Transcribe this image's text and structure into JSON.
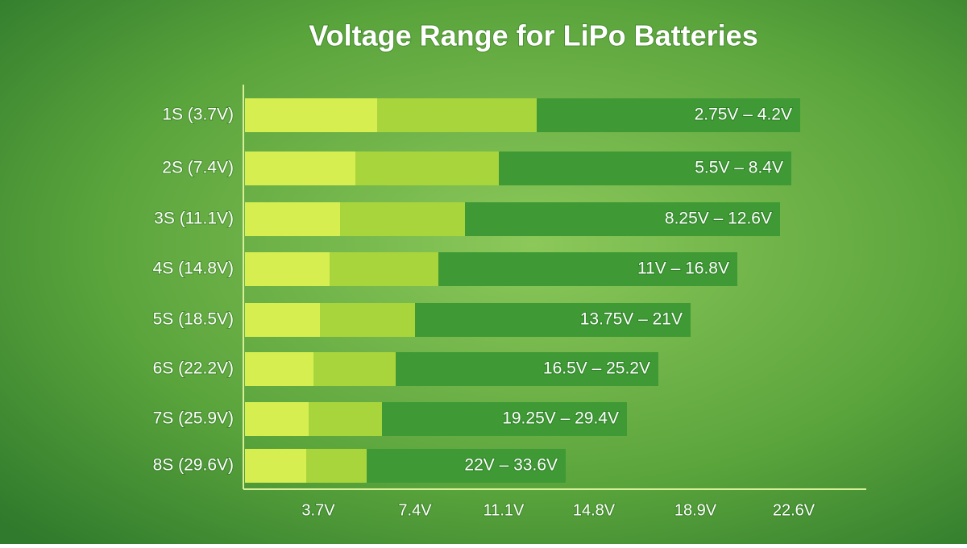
{
  "chart_data": {
    "type": "range-bar",
    "title": "Voltage Range for LiPo Batteries",
    "categories": [
      "1S (3.7V)",
      "2S (7.4V)",
      "3S (11.1V)",
      "4S (14.8V)",
      "5S (18.5V)",
      "6S (22.2V)",
      "7S (25.9V)",
      "8S (29.6V)"
    ],
    "value_labels": [
      "2.75V – 4.2V",
      "5.5V – 8.4V",
      "8.25V – 12.6V",
      "11V – 16.8V",
      "13.75V – 21V",
      "16.5V – 25.2V",
      "19.25V – 29.4V",
      "22V – 33.6V"
    ],
    "x_labels": [
      "3.7V",
      "7.4V",
      "11.1V",
      "14.8V",
      "18.9V",
      "22.6V"
    ]
  }
}
